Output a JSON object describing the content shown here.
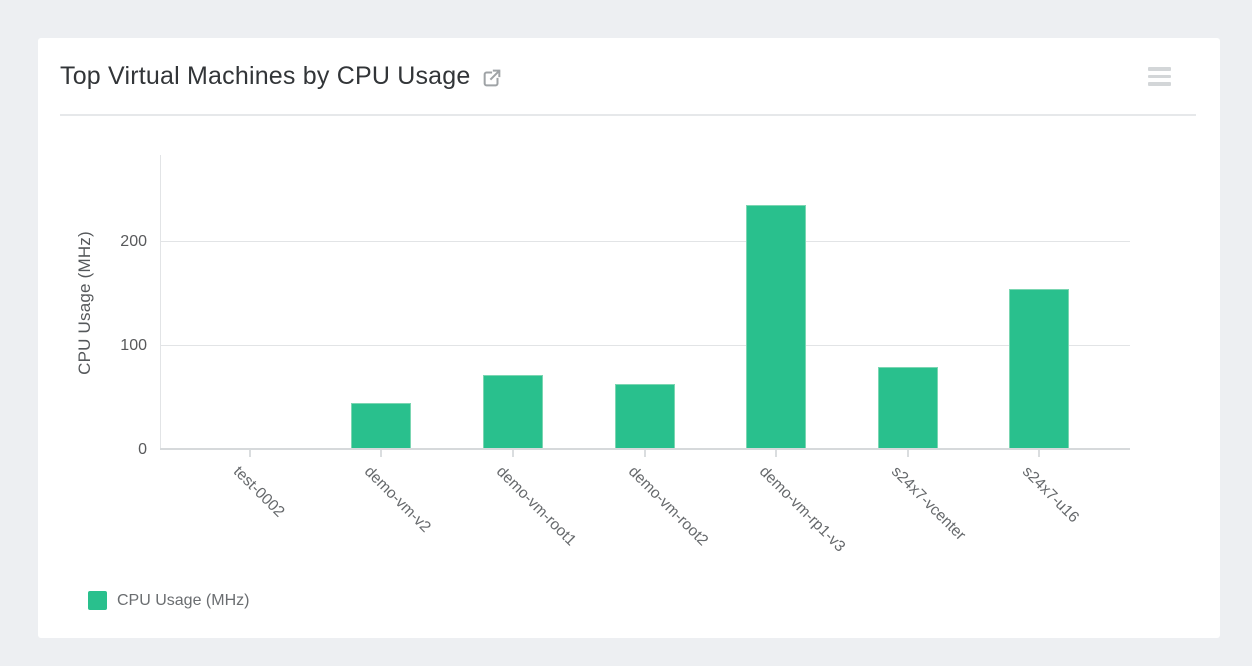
{
  "card": {
    "title": "Top Virtual Machines by CPU Usage",
    "title_link_icon": "external-link-icon",
    "menu_icon": "hamburger-menu-icon"
  },
  "chart_data": {
    "type": "bar",
    "title": "Top Virtual Machines by CPU Usage",
    "categories": [
      "test-0002",
      "demo-vm-v2",
      "demo-vm-root1",
      "demo-vm-root2",
      "demo-vm-rp1-v3",
      "s24x7-vcenter",
      "s24x7-u16"
    ],
    "values": [
      2,
      45,
      72,
      64,
      236,
      80,
      155
    ],
    "series_name": "CPU Usage (MHz)",
    "xlabel": "",
    "ylabel": "CPU Usage (MHz)",
    "yticks": [
      0,
      100,
      200
    ],
    "ylim": [
      0,
      284
    ],
    "grid": true,
    "legend_position": "bottom-left",
    "bar_color": "#29c08d"
  },
  "legend": {
    "label": "CPU Usage (MHz)",
    "swatch_color": "#29c08d"
  }
}
